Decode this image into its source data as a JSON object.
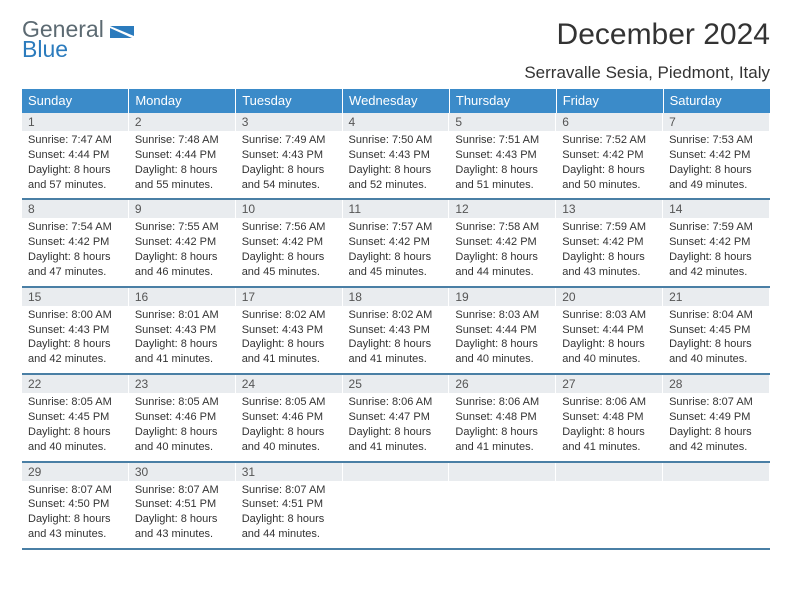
{
  "brand": {
    "line1": "General",
    "line2": "Blue"
  },
  "title": "December 2024",
  "location": "Serravalle Sesia, Piedmont, Italy",
  "colors": {
    "header_bg": "#3b8bc9",
    "header_text": "#ffffff",
    "daynum_bg": "#e9ecef",
    "week_border": "#4a7fa5",
    "logo_top": "#5c6a72",
    "logo_bottom": "#2b7bbd"
  },
  "day_headers": [
    "Sunday",
    "Monday",
    "Tuesday",
    "Wednesday",
    "Thursday",
    "Friday",
    "Saturday"
  ],
  "weeks": [
    [
      {
        "n": "1",
        "sunrise": "Sunrise: 7:47 AM",
        "sunset": "Sunset: 4:44 PM",
        "daylight": "Daylight: 8 hours and 57 minutes."
      },
      {
        "n": "2",
        "sunrise": "Sunrise: 7:48 AM",
        "sunset": "Sunset: 4:44 PM",
        "daylight": "Daylight: 8 hours and 55 minutes."
      },
      {
        "n": "3",
        "sunrise": "Sunrise: 7:49 AM",
        "sunset": "Sunset: 4:43 PM",
        "daylight": "Daylight: 8 hours and 54 minutes."
      },
      {
        "n": "4",
        "sunrise": "Sunrise: 7:50 AM",
        "sunset": "Sunset: 4:43 PM",
        "daylight": "Daylight: 8 hours and 52 minutes."
      },
      {
        "n": "5",
        "sunrise": "Sunrise: 7:51 AM",
        "sunset": "Sunset: 4:43 PM",
        "daylight": "Daylight: 8 hours and 51 minutes."
      },
      {
        "n": "6",
        "sunrise": "Sunrise: 7:52 AM",
        "sunset": "Sunset: 4:42 PM",
        "daylight": "Daylight: 8 hours and 50 minutes."
      },
      {
        "n": "7",
        "sunrise": "Sunrise: 7:53 AM",
        "sunset": "Sunset: 4:42 PM",
        "daylight": "Daylight: 8 hours and 49 minutes."
      }
    ],
    [
      {
        "n": "8",
        "sunrise": "Sunrise: 7:54 AM",
        "sunset": "Sunset: 4:42 PM",
        "daylight": "Daylight: 8 hours and 47 minutes."
      },
      {
        "n": "9",
        "sunrise": "Sunrise: 7:55 AM",
        "sunset": "Sunset: 4:42 PM",
        "daylight": "Daylight: 8 hours and 46 minutes."
      },
      {
        "n": "10",
        "sunrise": "Sunrise: 7:56 AM",
        "sunset": "Sunset: 4:42 PM",
        "daylight": "Daylight: 8 hours and 45 minutes."
      },
      {
        "n": "11",
        "sunrise": "Sunrise: 7:57 AM",
        "sunset": "Sunset: 4:42 PM",
        "daylight": "Daylight: 8 hours and 45 minutes."
      },
      {
        "n": "12",
        "sunrise": "Sunrise: 7:58 AM",
        "sunset": "Sunset: 4:42 PM",
        "daylight": "Daylight: 8 hours and 44 minutes."
      },
      {
        "n": "13",
        "sunrise": "Sunrise: 7:59 AM",
        "sunset": "Sunset: 4:42 PM",
        "daylight": "Daylight: 8 hours and 43 minutes."
      },
      {
        "n": "14",
        "sunrise": "Sunrise: 7:59 AM",
        "sunset": "Sunset: 4:42 PM",
        "daylight": "Daylight: 8 hours and 42 minutes."
      }
    ],
    [
      {
        "n": "15",
        "sunrise": "Sunrise: 8:00 AM",
        "sunset": "Sunset: 4:43 PM",
        "daylight": "Daylight: 8 hours and 42 minutes."
      },
      {
        "n": "16",
        "sunrise": "Sunrise: 8:01 AM",
        "sunset": "Sunset: 4:43 PM",
        "daylight": "Daylight: 8 hours and 41 minutes."
      },
      {
        "n": "17",
        "sunrise": "Sunrise: 8:02 AM",
        "sunset": "Sunset: 4:43 PM",
        "daylight": "Daylight: 8 hours and 41 minutes."
      },
      {
        "n": "18",
        "sunrise": "Sunrise: 8:02 AM",
        "sunset": "Sunset: 4:43 PM",
        "daylight": "Daylight: 8 hours and 41 minutes."
      },
      {
        "n": "19",
        "sunrise": "Sunrise: 8:03 AM",
        "sunset": "Sunset: 4:44 PM",
        "daylight": "Daylight: 8 hours and 40 minutes."
      },
      {
        "n": "20",
        "sunrise": "Sunrise: 8:03 AM",
        "sunset": "Sunset: 4:44 PM",
        "daylight": "Daylight: 8 hours and 40 minutes."
      },
      {
        "n": "21",
        "sunrise": "Sunrise: 8:04 AM",
        "sunset": "Sunset: 4:45 PM",
        "daylight": "Daylight: 8 hours and 40 minutes."
      }
    ],
    [
      {
        "n": "22",
        "sunrise": "Sunrise: 8:05 AM",
        "sunset": "Sunset: 4:45 PM",
        "daylight": "Daylight: 8 hours and 40 minutes."
      },
      {
        "n": "23",
        "sunrise": "Sunrise: 8:05 AM",
        "sunset": "Sunset: 4:46 PM",
        "daylight": "Daylight: 8 hours and 40 minutes."
      },
      {
        "n": "24",
        "sunrise": "Sunrise: 8:05 AM",
        "sunset": "Sunset: 4:46 PM",
        "daylight": "Daylight: 8 hours and 40 minutes."
      },
      {
        "n": "25",
        "sunrise": "Sunrise: 8:06 AM",
        "sunset": "Sunset: 4:47 PM",
        "daylight": "Daylight: 8 hours and 41 minutes."
      },
      {
        "n": "26",
        "sunrise": "Sunrise: 8:06 AM",
        "sunset": "Sunset: 4:48 PM",
        "daylight": "Daylight: 8 hours and 41 minutes."
      },
      {
        "n": "27",
        "sunrise": "Sunrise: 8:06 AM",
        "sunset": "Sunset: 4:48 PM",
        "daylight": "Daylight: 8 hours and 41 minutes."
      },
      {
        "n": "28",
        "sunrise": "Sunrise: 8:07 AM",
        "sunset": "Sunset: 4:49 PM",
        "daylight": "Daylight: 8 hours and 42 minutes."
      }
    ],
    [
      {
        "n": "29",
        "sunrise": "Sunrise: 8:07 AM",
        "sunset": "Sunset: 4:50 PM",
        "daylight": "Daylight: 8 hours and 43 minutes."
      },
      {
        "n": "30",
        "sunrise": "Sunrise: 8:07 AM",
        "sunset": "Sunset: 4:51 PM",
        "daylight": "Daylight: 8 hours and 43 minutes."
      },
      {
        "n": "31",
        "sunrise": "Sunrise: 8:07 AM",
        "sunset": "Sunset: 4:51 PM",
        "daylight": "Daylight: 8 hours and 44 minutes."
      },
      null,
      null,
      null,
      null
    ]
  ]
}
